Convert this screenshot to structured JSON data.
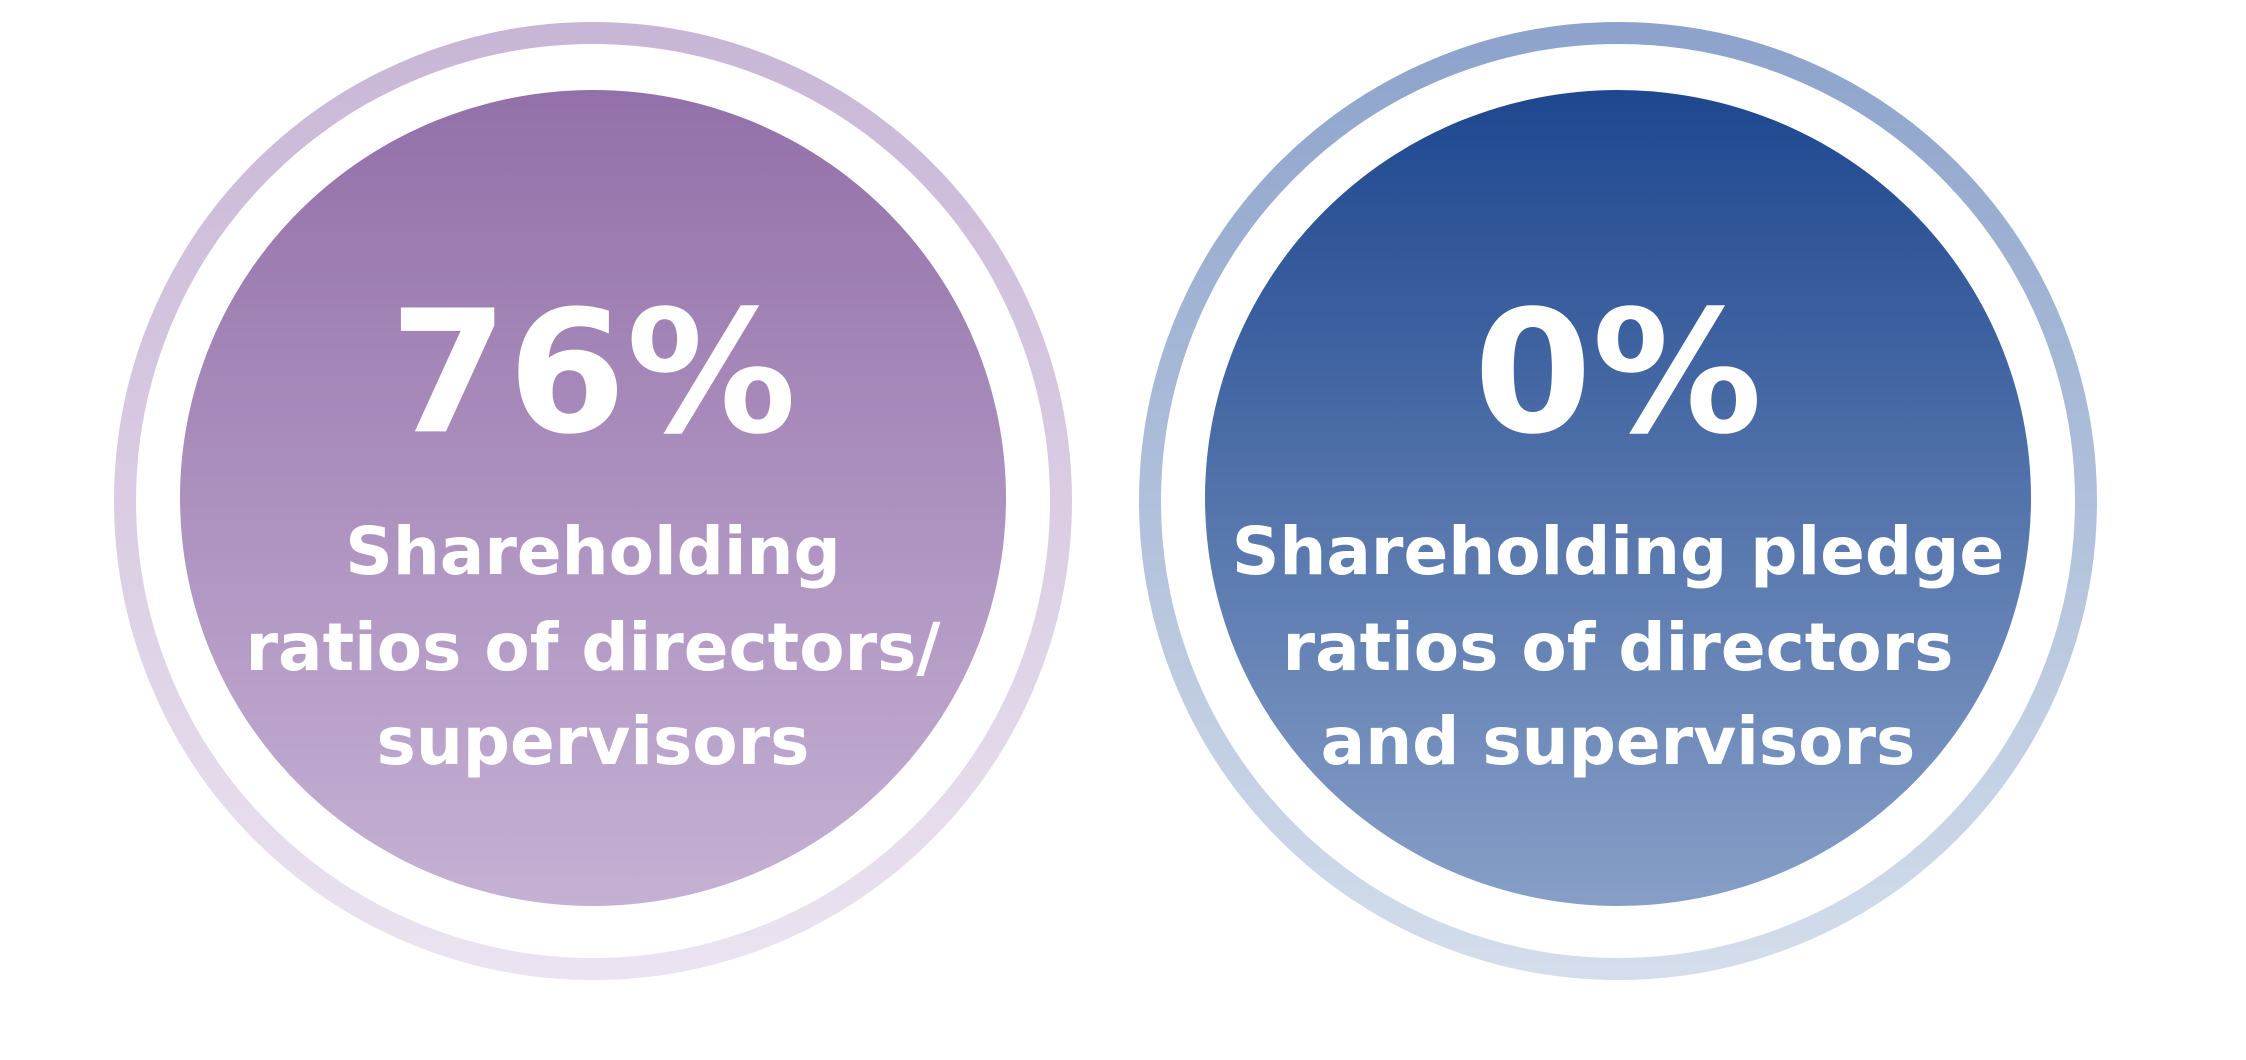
{
  "items": [
    {
      "value": "76%",
      "label": [
        "Shareholding",
        "ratios of directors/",
        "supervisors"
      ]
    },
    {
      "value": "0%",
      "label": [
        "Shareholding pledge",
        "ratios of directors",
        "and supervisors"
      ]
    }
  ]
}
